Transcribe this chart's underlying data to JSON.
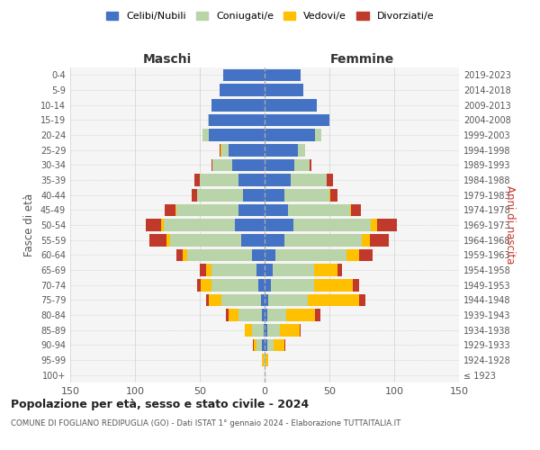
{
  "age_groups": [
    "100+",
    "95-99",
    "90-94",
    "85-89",
    "80-84",
    "75-79",
    "70-74",
    "65-69",
    "60-64",
    "55-59",
    "50-54",
    "45-49",
    "40-44",
    "35-39",
    "30-34",
    "25-29",
    "20-24",
    "15-19",
    "10-14",
    "5-9",
    "0-4"
  ],
  "birth_years": [
    "≤ 1923",
    "1924-1928",
    "1929-1933",
    "1934-1938",
    "1939-1943",
    "1944-1948",
    "1949-1953",
    "1954-1958",
    "1959-1963",
    "1964-1968",
    "1969-1973",
    "1974-1978",
    "1979-1983",
    "1984-1988",
    "1989-1993",
    "1994-1998",
    "1999-2003",
    "2004-2008",
    "2009-2013",
    "2014-2018",
    "2019-2023"
  ],
  "males": {
    "celibi": [
      0,
      0,
      2,
      1,
      2,
      3,
      5,
      6,
      10,
      18,
      23,
      20,
      17,
      20,
      25,
      28,
      43,
      43,
      41,
      35,
      32
    ],
    "coniugati": [
      0,
      1,
      4,
      9,
      18,
      30,
      36,
      35,
      50,
      55,
      55,
      48,
      35,
      30,
      15,
      5,
      5,
      1,
      0,
      0,
      0
    ],
    "vedovi": [
      0,
      1,
      2,
      5,
      8,
      10,
      8,
      4,
      3,
      3,
      2,
      1,
      0,
      0,
      0,
      1,
      0,
      0,
      0,
      0,
      0
    ],
    "divorziati": [
      0,
      0,
      1,
      0,
      2,
      2,
      3,
      5,
      5,
      13,
      12,
      8,
      4,
      4,
      1,
      1,
      0,
      0,
      0,
      0,
      0
    ]
  },
  "females": {
    "nubili": [
      0,
      0,
      2,
      2,
      2,
      3,
      5,
      6,
      8,
      15,
      22,
      18,
      15,
      20,
      23,
      26,
      39,
      50,
      40,
      30,
      28
    ],
    "coniugate": [
      0,
      1,
      5,
      10,
      15,
      30,
      33,
      32,
      55,
      60,
      60,
      48,
      35,
      28,
      12,
      5,
      5,
      0,
      0,
      0,
      0
    ],
    "vedove": [
      0,
      2,
      8,
      15,
      22,
      40,
      30,
      18,
      10,
      6,
      5,
      1,
      1,
      0,
      0,
      0,
      0,
      0,
      0,
      0,
      0
    ],
    "divorziate": [
      0,
      0,
      1,
      1,
      4,
      5,
      5,
      4,
      10,
      15,
      15,
      7,
      5,
      5,
      1,
      0,
      0,
      0,
      0,
      0,
      0
    ]
  },
  "colors": {
    "celibi": "#4472c4",
    "coniugati": "#b8d4a8",
    "vedovi": "#ffc000",
    "divorziati": "#c0392b"
  },
  "title": "Popolazione per età, sesso e stato civile - 2024",
  "subtitle": "COMUNE DI FOGLIANO REDIPUGLIA (GO) - Dati ISTAT 1° gennaio 2024 - Elaborazione TUTTAITALIA.IT",
  "xlabel_left": "Maschi",
  "xlabel_right": "Femmine",
  "ylabel_left": "Fasce di età",
  "ylabel_right": "Anni di nascita",
  "xlim": 150,
  "legend_labels": [
    "Celibi/Nubili",
    "Coniugati/e",
    "Vedovi/e",
    "Divorziati/e"
  ],
  "bg_color": "#ffffff",
  "grid_color": "#d0d0d0",
  "face_color": "#f5f5f5"
}
